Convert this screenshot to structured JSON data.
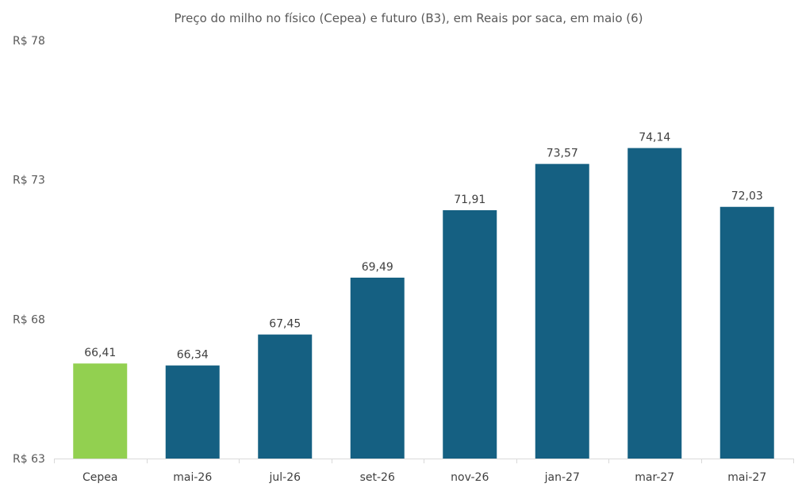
{
  "chart_data": {
    "type": "bar",
    "title": "Preço do milho no físico (Cepea) e futuro (B3), em Reais por saca, em maio (6)",
    "xlabel": "",
    "ylabel": "",
    "categories": [
      "Cepea",
      "mai-26",
      "jul-26",
      "set-26",
      "nov-26",
      "jan-27",
      "mar-27",
      "mai-27"
    ],
    "values": [
      66.41,
      66.34,
      67.45,
      69.49,
      71.91,
      73.57,
      74.14,
      72.03
    ],
    "data_labels": [
      "66,41",
      "66,34",
      "67,45",
      "69,49",
      "71,91",
      "73,57",
      "74,14",
      "72,03"
    ],
    "ylim": [
      63,
      78
    ],
    "yticks": [
      63,
      68,
      73,
      78
    ],
    "ytick_labels": [
      "R$ 63",
      "R$ 68",
      "R$ 73",
      "R$ 78"
    ],
    "grid": false,
    "legend": "none",
    "colors": {
      "highlight": "#92d050",
      "bar": "#156082",
      "axis": "#d9d9d9"
    }
  }
}
